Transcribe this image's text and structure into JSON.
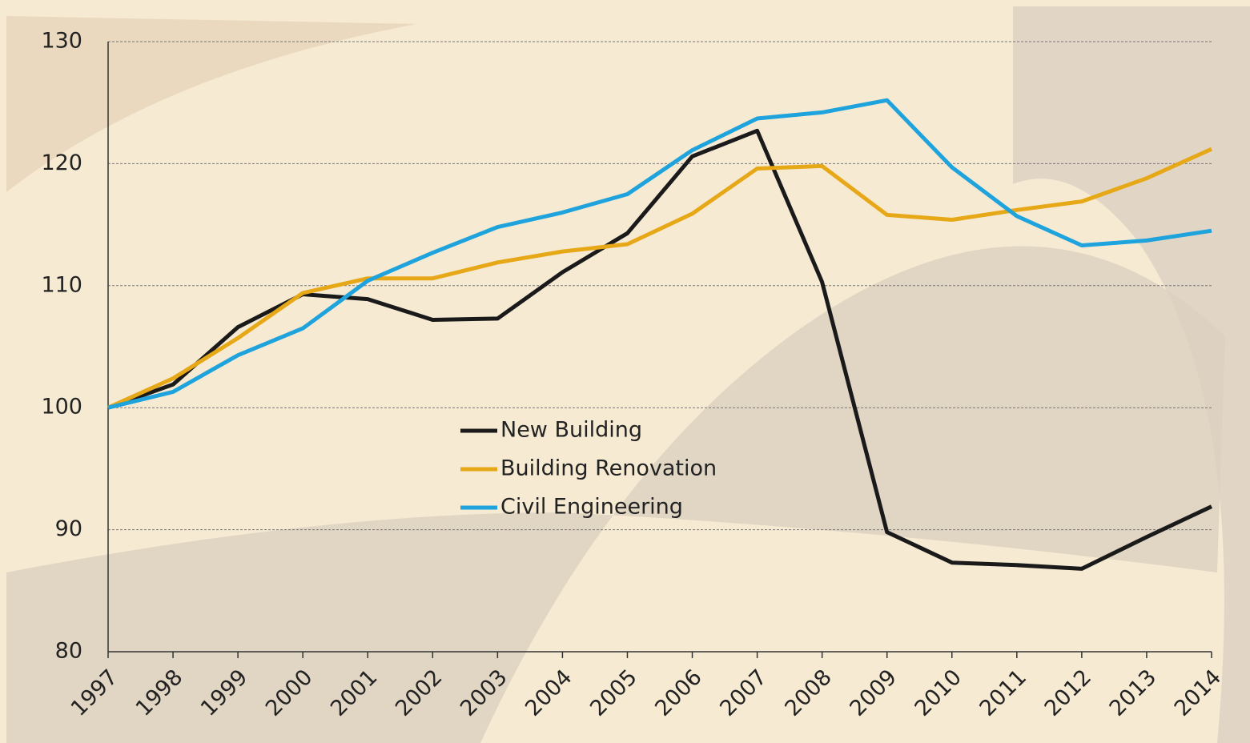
{
  "chart_data": {
    "type": "line",
    "categories": [
      "1997",
      "1998",
      "1999",
      "2000",
      "2001",
      "2002",
      "2003",
      "2004",
      "2005",
      "2006",
      "2007",
      "2008",
      "2009",
      "2010",
      "2011",
      "2012",
      "2013",
      "2014"
    ],
    "series": [
      {
        "name": "New Building",
        "color": "#1a1a1a",
        "values": [
          100,
          101.9,
          106.6,
          109.3,
          108.9,
          107.2,
          107.3,
          111.1,
          114.3,
          120.6,
          122.7,
          110.3,
          89.8,
          87.3,
          87.1,
          86.8,
          89.4,
          91.9
        ]
      },
      {
        "name": "Building Renovation",
        "color": "#e6a817",
        "values": [
          100,
          102.4,
          105.7,
          109.4,
          110.6,
          110.6,
          111.9,
          112.8,
          113.4,
          115.9,
          119.6,
          119.8,
          115.8,
          115.4,
          116.2,
          116.9,
          118.8,
          121.2
        ]
      },
      {
        "name": "Civil Engineering",
        "color": "#1fa3dc",
        "values": [
          100,
          101.3,
          104.3,
          106.5,
          110.4,
          112.7,
          114.8,
          116.0,
          117.5,
          121.1,
          123.7,
          124.2,
          125.2,
          119.7,
          115.7,
          113.3,
          113.7,
          114.5
        ]
      }
    ],
    "ylim": [
      80,
      130
    ],
    "yticks": [
      80,
      90,
      100,
      110,
      120,
      130
    ],
    "grid": true,
    "legend": "center"
  }
}
